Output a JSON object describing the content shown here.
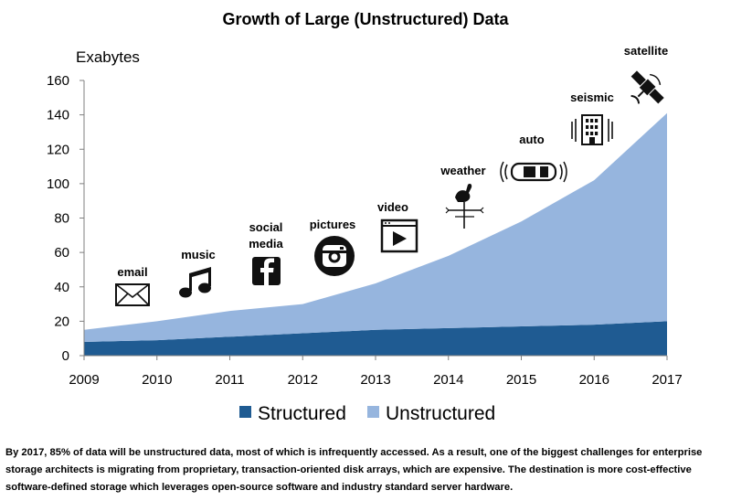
{
  "chart_data": {
    "type": "area",
    "title": "Growth of Large (Unstructured) Data",
    "ylabel": "Exabytes",
    "xlabel": "",
    "categories": [
      "2009",
      "2010",
      "2011",
      "2012",
      "2013",
      "2014",
      "2015",
      "2016",
      "2017"
    ],
    "ylim": [
      0,
      160
    ],
    "yticks": [
      0,
      20,
      40,
      60,
      80,
      100,
      120,
      140,
      160
    ],
    "stacked": true,
    "grid": false,
    "legend_position": "bottom",
    "series": [
      {
        "name": "Structured",
        "values": [
          8,
          9,
          11,
          13,
          15,
          16,
          17,
          18,
          20
        ],
        "color": "#1f5b92"
      },
      {
        "name": "Unstructured",
        "values": [
          7,
          11,
          15,
          17,
          27,
          42,
          61,
          84,
          121
        ],
        "color": "#96b5de"
      }
    ],
    "annotations": [
      {
        "label": "email",
        "icon": "envelope-icon"
      },
      {
        "label": "music",
        "icon": "music-note-icon"
      },
      {
        "label": "social media",
        "lines": [
          "social",
          "media"
        ],
        "icon": "facebook-icon"
      },
      {
        "label": "pictures",
        "icon": "instagram-camera-icon"
      },
      {
        "label": "video",
        "icon": "video-play-icon"
      },
      {
        "label": "weather",
        "icon": "weathervane-icon"
      },
      {
        "label": "auto",
        "icon": "car-sensor-icon"
      },
      {
        "label": "seismic",
        "icon": "building-tremor-icon"
      },
      {
        "label": "satellite",
        "icon": "satellite-icon"
      }
    ]
  },
  "caption": "By 2017, 85% of data will be unstructured data, most of which is infrequently accessed. As a result, one of the biggest challenges for enterprise storage architects is migrating from proprietary, transaction-oriented disk arrays, which are expensive. The destination is more cost-effective software-defined storage which leverages open-source software and industry standard server hardware."
}
